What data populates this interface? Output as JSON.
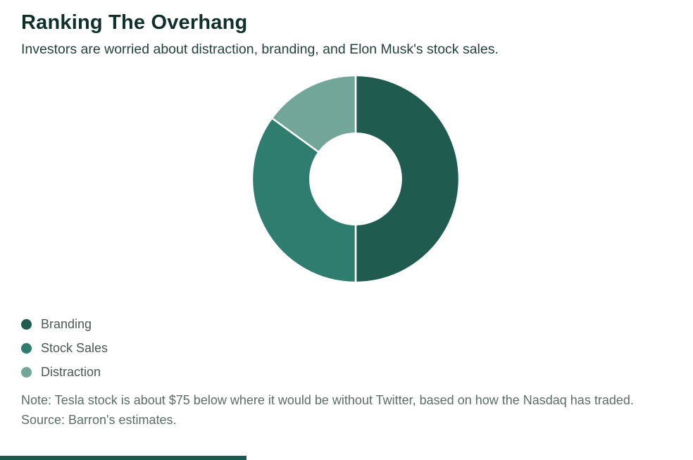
{
  "header": {
    "title": "Ranking The Overhang",
    "subtitle": "Investors are worried about distraction, branding, and Elon Musk's stock sales."
  },
  "chart_data": {
    "type": "pie",
    "title": "Ranking The Overhang",
    "subtitle": "Investors are worried about distraction, branding, and Elon Musk's stock sales.",
    "donut": true,
    "inner_radius_ratio": 0.44,
    "start_angle_deg": 0,
    "direction": "clockwise",
    "slices": [
      {
        "label": "Branding",
        "value": 50,
        "color": "#1f5b4e"
      },
      {
        "label": "Stock Sales",
        "value": 35,
        "color": "#2f7d6e"
      },
      {
        "label": "Distraction",
        "value": 15,
        "color": "#72a698"
      }
    ],
    "slice_divider_color": "#ffffff",
    "legend_position": "bottom-left"
  },
  "footer": {
    "note": "Note: Tesla stock is about $75 below where it would be without Twitter, based on how the Nasdaq has traded.",
    "source": "Source: Barron's estimates."
  },
  "colors": {
    "accent_bar": "#1a5a4e"
  }
}
